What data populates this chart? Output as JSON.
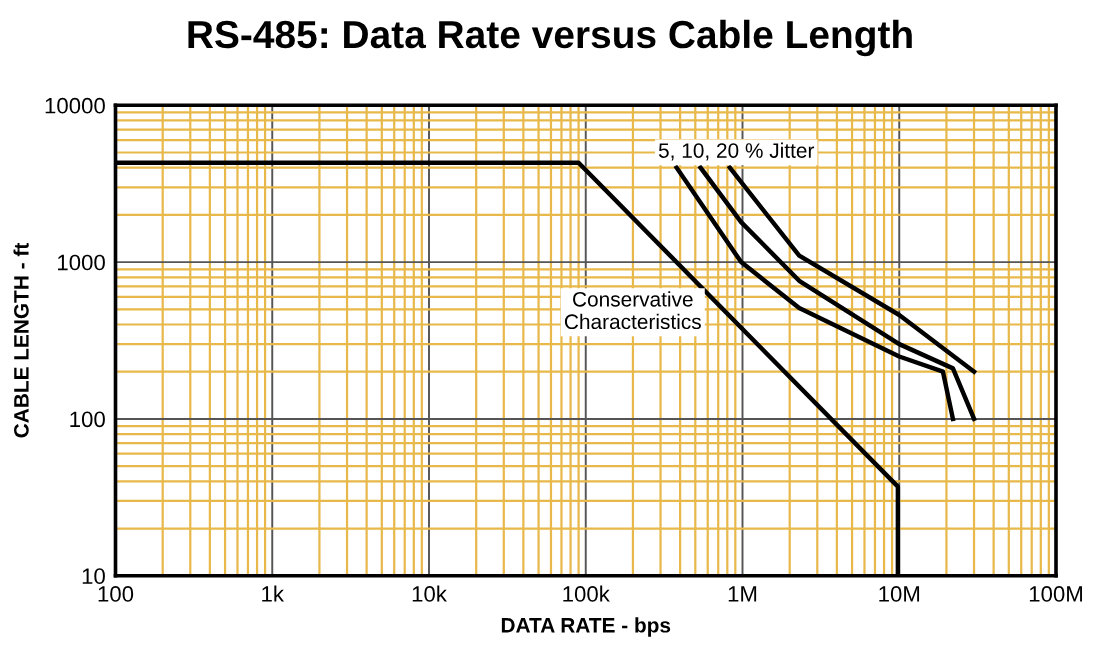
{
  "chart_data": {
    "type": "line",
    "title": "RS-485: Data Rate versus Cable Length",
    "xlabel": "DATA RATE - bps",
    "ylabel": "CABLE LENGTH - ft",
    "log": "xy",
    "grid": true,
    "marker": "none",
    "line_style": "solid",
    "xlim": [
      100,
      100000000
    ],
    "ylim": [
      10,
      10000
    ],
    "xticks": [
      {
        "value": 100,
        "label": "100"
      },
      {
        "value": 200,
        "label": null
      },
      {
        "value": 300,
        "label": null
      },
      {
        "value": 400,
        "label": null
      },
      {
        "value": 500,
        "label": null
      },
      {
        "value": 600,
        "label": null
      },
      {
        "value": 700,
        "label": null
      },
      {
        "value": 800,
        "label": null
      },
      {
        "value": 900,
        "label": null
      },
      {
        "value": 1000,
        "label": "1k"
      },
      {
        "value": 2000,
        "label": null
      },
      {
        "value": 3000,
        "label": null
      },
      {
        "value": 4000,
        "label": null
      },
      {
        "value": 5000,
        "label": null
      },
      {
        "value": 6000,
        "label": null
      },
      {
        "value": 7000,
        "label": null
      },
      {
        "value": 8000,
        "label": null
      },
      {
        "value": 9000,
        "label": null
      },
      {
        "value": 10000,
        "label": "10k"
      },
      {
        "value": 20000,
        "label": null
      },
      {
        "value": 30000,
        "label": null
      },
      {
        "value": 40000,
        "label": null
      },
      {
        "value": 50000,
        "label": null
      },
      {
        "value": 60000,
        "label": null
      },
      {
        "value": 70000,
        "label": null
      },
      {
        "value": 80000,
        "label": null
      },
      {
        "value": 90000,
        "label": null
      },
      {
        "value": 100000,
        "label": "100k"
      },
      {
        "value": 200000,
        "label": null
      },
      {
        "value": 300000,
        "label": null
      },
      {
        "value": 400000,
        "label": null
      },
      {
        "value": 500000,
        "label": null
      },
      {
        "value": 600000,
        "label": null
      },
      {
        "value": 700000,
        "label": null
      },
      {
        "value": 800000,
        "label": null
      },
      {
        "value": 900000,
        "label": null
      },
      {
        "value": 1000000,
        "label": "1M"
      },
      {
        "value": 2000000,
        "label": null
      },
      {
        "value": 3000000,
        "label": null
      },
      {
        "value": 4000000,
        "label": null
      },
      {
        "value": 5000000,
        "label": null
      },
      {
        "value": 6000000,
        "label": null
      },
      {
        "value": 7000000,
        "label": null
      },
      {
        "value": 8000000,
        "label": null
      },
      {
        "value": 9000000,
        "label": null
      },
      {
        "value": 10000000,
        "label": "10M"
      },
      {
        "value": 20000000,
        "label": null
      },
      {
        "value": 30000000,
        "label": null
      },
      {
        "value": 40000000,
        "label": null
      },
      {
        "value": 50000000,
        "label": null
      },
      {
        "value": 60000000,
        "label": null
      },
      {
        "value": 70000000,
        "label": null
      },
      {
        "value": 80000000,
        "label": null
      },
      {
        "value": 90000000,
        "label": null
      },
      {
        "value": 100000000,
        "label": "100M"
      }
    ],
    "yticks": [
      10,
      {
        "value": 20,
        "label": null
      },
      {
        "value": 30,
        "label": null
      },
      {
        "value": 40,
        "label": null
      },
      {
        "value": 50,
        "label": null
      },
      {
        "value": 60,
        "label": null
      },
      {
        "value": 70,
        "label": null
      },
      {
        "value": 80,
        "label": null
      },
      {
        "value": 90,
        "label": null
      },
      100,
      {
        "value": 200,
        "label": null
      },
      {
        "value": 300,
        "label": null
      },
      {
        "value": 400,
        "label": null
      },
      {
        "value": 500,
        "label": null
      },
      {
        "value": 600,
        "label": null
      },
      {
        "value": 700,
        "label": null
      },
      {
        "value": 800,
        "label": null
      },
      {
        "value": 900,
        "label": null
      },
      1000,
      {
        "value": 2000,
        "label": null
      },
      {
        "value": 3000,
        "label": null
      },
      {
        "value": 4000,
        "label": null
      },
      {
        "value": 5000,
        "label": null
      },
      {
        "value": 6000,
        "label": null
      },
      {
        "value": 7000,
        "label": null
      },
      {
        "value": 8000,
        "label": null
      },
      {
        "value": 9000,
        "label": null
      },
      10000
    ],
    "series": [
      {
        "color": "#000000",
        "x": [
          100,
          90000,
          9800000,
          9800000
        ],
        "values": [
          4300,
          4300,
          37,
          10
        ]
      },
      {
        "color": "#000000",
        "x": [
          380000,
          980000,
          2300000,
          10000000,
          19000000,
          22000000
        ],
        "values": [
          4000,
          1000,
          510,
          250,
          200,
          100
        ]
      },
      {
        "color": "#000000",
        "x": [
          540000,
          980000,
          2300000,
          10000000,
          22000000,
          30000000
        ],
        "values": [
          4000,
          1800,
          760,
          300,
          210,
          100
        ]
      },
      {
        "color": "#000000",
        "x": [
          830000,
          2300000,
          10000000,
          30000000
        ],
        "values": [
          4000,
          1100,
          460,
          200
        ]
      }
    ],
    "annotations": [
      "5, 10, 20 % Jitter",
      "Conservative\nCharacteristics"
    ]
  }
}
